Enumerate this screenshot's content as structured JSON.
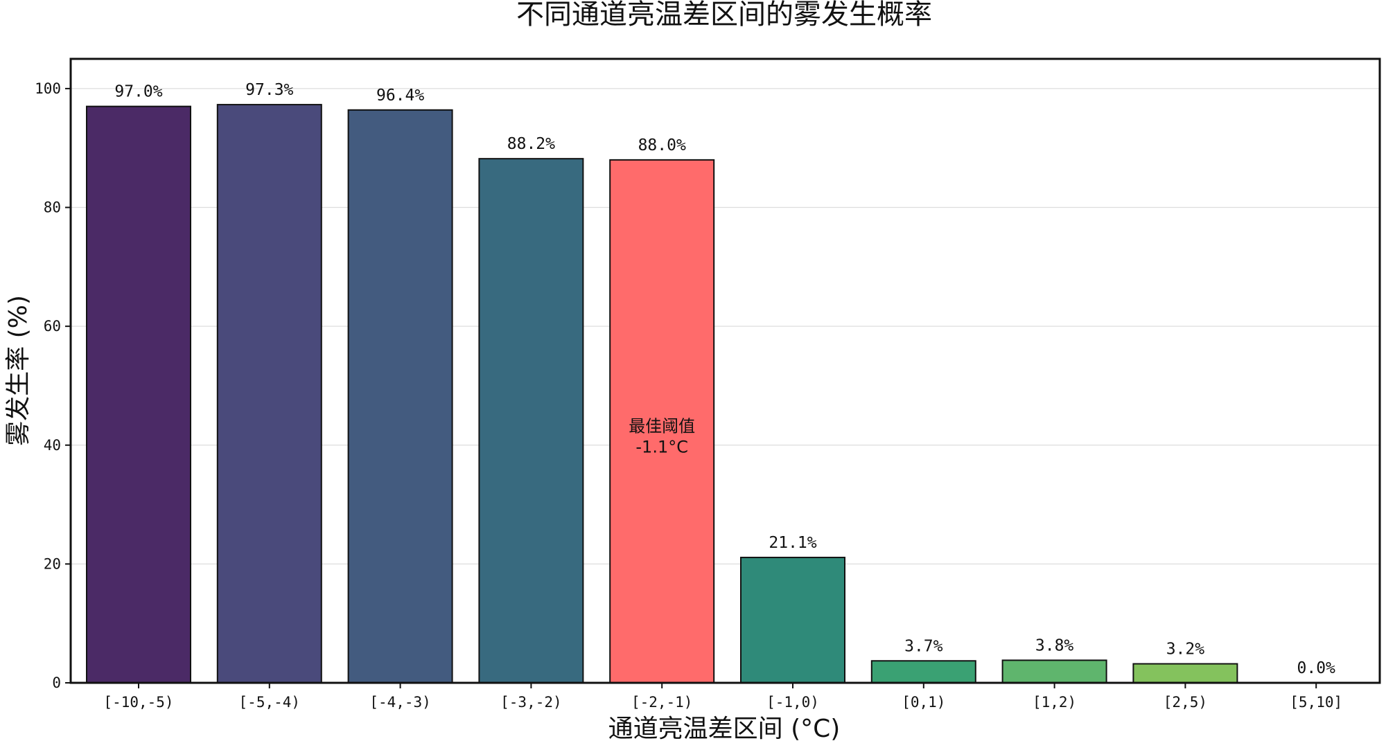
{
  "chart_data": {
    "type": "bar",
    "title": "不同通道亮温差区间的雾发生概率",
    "xlabel": "通道亮温差区间 (°C)",
    "ylabel": "雾发生率 (%)",
    "ylim": [
      0,
      105
    ],
    "yticks": [
      0,
      20,
      40,
      60,
      80,
      100
    ],
    "grid": true,
    "categories": [
      "[-10,-5)",
      "[-5,-4)",
      "[-4,-3)",
      "[-3,-2)",
      "[-2,-1)",
      "[-1,0)",
      "[0,1)",
      "[1,2)",
      "[2,5)",
      "[5,10]"
    ],
    "values": [
      97.0,
      97.3,
      96.4,
      88.2,
      88.0,
      21.1,
      3.7,
      3.8,
      3.2,
      0.0
    ],
    "value_labels": [
      "97.0%",
      "97.3%",
      "96.4%",
      "88.2%",
      "88.0%",
      "21.1%",
      "3.7%",
      "3.8%",
      "3.2%",
      "0.0%"
    ],
    "colors": [
      "#4b2a66",
      "#4a4a7b",
      "#435b7f",
      "#386a7f",
      "#ff6b6b",
      "#2f8a79",
      "#3aa173",
      "#5fb56d",
      "#84c25d",
      "#c8dc3a"
    ],
    "highlight": {
      "category": "[-2,-1)",
      "color": "#ff6b6b",
      "lines": [
        "最佳阈值",
        "-1.1°C"
      ]
    }
  }
}
